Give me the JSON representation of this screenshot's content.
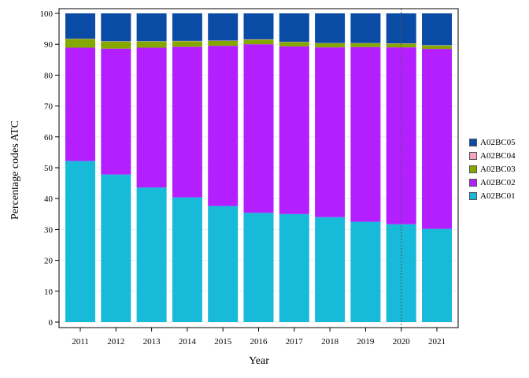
{
  "chart_data": {
    "type": "bar",
    "stacked": true,
    "xlabel": "Year",
    "ylabel": "Percentage codes ATC",
    "ylim": [
      0,
      100
    ],
    "yticks": [
      0,
      10,
      20,
      30,
      40,
      50,
      60,
      70,
      80,
      90,
      100
    ],
    "categories": [
      "2011",
      "2012",
      "2013",
      "2014",
      "2015",
      "2016",
      "2017",
      "2018",
      "2019",
      "2020",
      "2021"
    ],
    "reference_line": {
      "x": "2020",
      "style": "dotted"
    },
    "legend_position": "right",
    "series": [
      {
        "name": "A02BC01",
        "color": "#17BAD9",
        "values": [
          52.2,
          47.8,
          43.6,
          40.4,
          37.6,
          35.4,
          35.0,
          34.0,
          32.5,
          31.7,
          30.2
        ]
      },
      {
        "name": "A02BC02",
        "color": "#B31FFF",
        "values": [
          36.7,
          40.8,
          45.3,
          48.8,
          51.9,
          54.6,
          54.3,
          55.0,
          56.6,
          57.3,
          58.3
        ]
      },
      {
        "name": "A02BC03",
        "color": "#85A800",
        "values": [
          2.8,
          2.3,
          2.0,
          1.8,
          1.6,
          1.5,
          1.4,
          1.3,
          1.2,
          1.2,
          1.1
        ]
      },
      {
        "name": "A02BC04",
        "color": "#F5A3C2",
        "values": [
          0.1,
          0.1,
          0.1,
          0.1,
          0.1,
          0.1,
          0.1,
          0.1,
          0.1,
          0.1,
          0.1
        ]
      },
      {
        "name": "A02BC05",
        "color": "#0A4BA6",
        "values": [
          8.2,
          9.0,
          9.0,
          8.9,
          8.8,
          8.4,
          9.2,
          9.6,
          9.6,
          9.7,
          10.3
        ]
      }
    ]
  }
}
